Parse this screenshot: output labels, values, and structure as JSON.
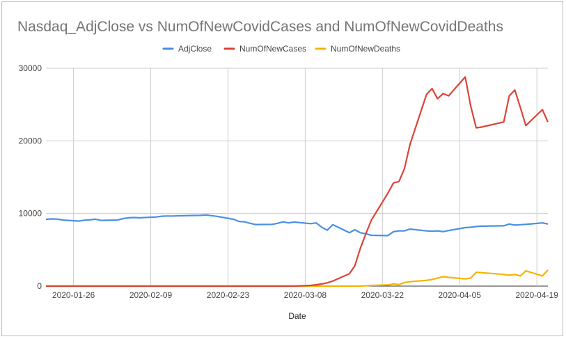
{
  "chart_data": {
    "type": "line",
    "title": "Nasdaq_AdjClose vs NumOfNewCovidCases and NumOfNewCovidDeaths",
    "xlabel": "Date",
    "ylabel": "",
    "ylim": [
      0,
      30000
    ],
    "y_ticks": [
      "0",
      "10000",
      "20000",
      "30000"
    ],
    "x_ticks": [
      "2020-01-26",
      "2020-02-09",
      "2020-02-23",
      "2020-03-08",
      "2020-03-22",
      "2020-04-05",
      "2020-04-19"
    ],
    "x_range": [
      "2020-01-21",
      "2020-04-21"
    ],
    "legend_position": "top",
    "grid": true,
    "x": [
      "2020-01-21",
      "2020-01-22",
      "2020-01-23",
      "2020-01-24",
      "2020-01-27",
      "2020-01-28",
      "2020-01-29",
      "2020-01-30",
      "2020-01-31",
      "2020-02-03",
      "2020-02-04",
      "2020-02-05",
      "2020-02-06",
      "2020-02-07",
      "2020-02-10",
      "2020-02-11",
      "2020-02-12",
      "2020-02-13",
      "2020-02-14",
      "2020-02-18",
      "2020-02-19",
      "2020-02-20",
      "2020-02-21",
      "2020-02-24",
      "2020-02-25",
      "2020-02-26",
      "2020-02-27",
      "2020-02-28",
      "2020-03-02",
      "2020-03-03",
      "2020-03-04",
      "2020-03-05",
      "2020-03-06",
      "2020-03-09",
      "2020-03-10",
      "2020-03-11",
      "2020-03-12",
      "2020-03-13",
      "2020-03-16",
      "2020-03-17",
      "2020-03-18",
      "2020-03-19",
      "2020-03-20",
      "2020-03-23",
      "2020-03-24",
      "2020-03-25",
      "2020-03-26",
      "2020-03-27",
      "2020-03-30",
      "2020-03-31",
      "2020-04-01",
      "2020-04-02",
      "2020-04-03",
      "2020-04-06",
      "2020-04-07",
      "2020-04-08",
      "2020-04-09",
      "2020-04-13",
      "2020-04-14",
      "2020-04-15",
      "2020-04-16",
      "2020-04-17",
      "2020-04-20",
      "2020-04-21"
    ],
    "series": [
      {
        "name": "AdjClose",
        "color": "#4a90e2",
        "values": [
          9200,
          9250,
          9230,
          9100,
          8950,
          9080,
          9120,
          9210,
          9050,
          9100,
          9300,
          9400,
          9440,
          9400,
          9520,
          9620,
          9650,
          9650,
          9680,
          9740,
          9800,
          9700,
          9600,
          9200,
          8900,
          8850,
          8650,
          8470,
          8500,
          8650,
          8850,
          8700,
          8820,
          8600,
          8700,
          8100,
          7700,
          8450,
          7350,
          7750,
          7350,
          7200,
          7000,
          6950,
          7500,
          7600,
          7600,
          7850,
          7600,
          7550,
          7600,
          7500,
          7650,
          8050,
          8100,
          8200,
          8250,
          8300,
          8550,
          8400,
          8450,
          8500,
          8700,
          8550
        ]
      },
      {
        "name": "NumOfNewCases",
        "color": "#db4437",
        "values": [
          0,
          0,
          0,
          0,
          0,
          0,
          0,
          0,
          0,
          0,
          0,
          0,
          0,
          0,
          0,
          0,
          0,
          0,
          0,
          0,
          0,
          0,
          0,
          0,
          0,
          0,
          0,
          0,
          0,
          0,
          0,
          0,
          0,
          100,
          180,
          300,
          450,
          700,
          1700,
          2800,
          5200,
          7200,
          9100,
          12800,
          14200,
          14400,
          16200,
          19500,
          26400,
          27200,
          25800,
          26500,
          26200,
          28800,
          24800,
          21800,
          21900,
          22600,
          26200,
          27000,
          24600,
          22100,
          24300,
          22600
        ]
      },
      {
        "name": "NumOfNewDeaths",
        "color": "#f4b400",
        "values": [
          0,
          0,
          0,
          0,
          0,
          0,
          0,
          0,
          0,
          0,
          0,
          0,
          0,
          0,
          0,
          0,
          0,
          0,
          0,
          0,
          0,
          0,
          0,
          0,
          0,
          0,
          0,
          0,
          0,
          0,
          0,
          0,
          0,
          0,
          0,
          0,
          0,
          0,
          0,
          0,
          0,
          50,
          100,
          150,
          300,
          200,
          500,
          600,
          800,
          900,
          1100,
          1300,
          1200,
          1000,
          1100,
          1900,
          1850,
          1600,
          1500,
          1600,
          1400,
          2100,
          1400,
          2200
        ]
      }
    ]
  }
}
